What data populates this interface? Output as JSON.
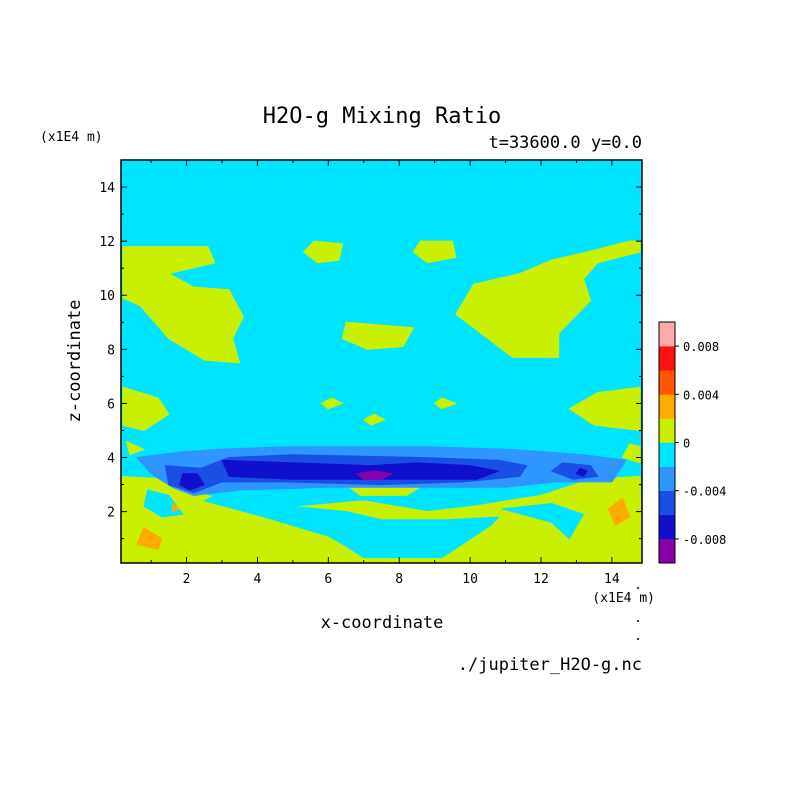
{
  "chart_data": {
    "type": "heatmap",
    "title": "H2O-g Mixing Ratio",
    "subtitle": "t=33600.0 y=0.0",
    "xlabel": "x-coordinate",
    "ylabel": "z-coordinate",
    "x_units": "(x1E4 m)",
    "y_units": "(x1E4 m)",
    "xlim": [
      0.15,
      14.85
    ],
    "ylim": [
      0.1,
      15.0
    ],
    "x_ticks": [
      2,
      4,
      6,
      8,
      10,
      12,
      14
    ],
    "y_ticks": [
      2,
      4,
      6,
      8,
      10,
      12,
      14
    ],
    "x_tick_labels": [
      "2",
      "4",
      "6",
      "8",
      "10",
      "12",
      "14"
    ],
    "y_tick_labels": [
      "2",
      "4",
      "6",
      "8",
      "10",
      "12",
      "14"
    ],
    "source": "./jupiter_H2O-g.nc",
    "legend": {
      "placement": "right",
      "levels": [
        -0.01,
        -0.008,
        -0.006,
        -0.004,
        -0.002,
        0.0,
        0.002,
        0.004,
        0.006,
        0.008,
        0.01
      ],
      "colors": [
        "#8800aa",
        "#1010cc",
        "#1a4fe6",
        "#2f96ff",
        "#00e5ff",
        "#c8f000",
        "#ffaa00",
        "#ff5500",
        "#ff1111",
        "#ffaaaa"
      ],
      "tick_values": [
        -0.008,
        -0.004,
        0,
        0.004,
        0.008
      ],
      "tick_labels": [
        "-0.008",
        "-0.004",
        "0",
        "0.004",
        "0.008"
      ]
    },
    "background_level": "-0.002 to 0",
    "regions": [
      {
        "name": "upper-band",
        "level": "0 to 0.002",
        "points": [
          [
            0.2,
            11.8
          ],
          [
            2.6,
            11.8
          ],
          [
            2.8,
            11.2
          ],
          [
            1.5,
            10.8
          ],
          [
            2.2,
            10.3
          ],
          [
            3.2,
            10.2
          ],
          [
            3.6,
            9.2
          ],
          [
            3.3,
            8.4
          ],
          [
            3.5,
            7.5
          ],
          [
            2.5,
            7.6
          ],
          [
            1.5,
            8.4
          ],
          [
            0.7,
            9.6
          ],
          [
            0.2,
            9.9
          ]
        ]
      },
      {
        "name": "upper-band",
        "level": "0 to 0.002",
        "points": [
          [
            14.8,
            11.6
          ],
          [
            13.6,
            11.2
          ],
          [
            13.2,
            10.6
          ],
          [
            13.4,
            9.8
          ],
          [
            12.5,
            8.6
          ],
          [
            12.5,
            7.7
          ],
          [
            11.2,
            7.7
          ],
          [
            10.4,
            8.5
          ],
          [
            9.6,
            9.3
          ],
          [
            10.1,
            10.4
          ],
          [
            11.4,
            10.8
          ],
          [
            12.3,
            11.3
          ],
          [
            13.3,
            11.6
          ],
          [
            14.5,
            12.0
          ],
          [
            14.8,
            12.0
          ]
        ]
      },
      {
        "name": "upper-band",
        "level": "0 to 0.002",
        "points": [
          [
            5.6,
            12.0
          ],
          [
            6.4,
            11.9
          ],
          [
            6.3,
            11.3
          ],
          [
            5.7,
            11.2
          ],
          [
            5.3,
            11.6
          ]
        ]
      },
      {
        "name": "upper-band",
        "level": "0 to 0.002",
        "points": [
          [
            8.6,
            12.0
          ],
          [
            9.5,
            12.0
          ],
          [
            9.6,
            11.4
          ],
          [
            8.8,
            11.2
          ],
          [
            8.4,
            11.6
          ]
        ]
      },
      {
        "name": "upper-band",
        "level": "0 to 0.002",
        "points": [
          [
            6.5,
            9.0
          ],
          [
            8.4,
            8.8
          ],
          [
            8.1,
            8.1
          ],
          [
            7.1,
            8.0
          ],
          [
            6.4,
            8.4
          ]
        ]
      },
      {
        "name": "upper-band",
        "level": "0 to 0.002",
        "points": [
          [
            0.2,
            6.6
          ],
          [
            1.2,
            6.2
          ],
          [
            1.5,
            5.6
          ],
          [
            0.8,
            5.0
          ],
          [
            0.2,
            5.2
          ]
        ]
      },
      {
        "name": "upper-band",
        "level": "0 to 0.002",
        "points": [
          [
            14.8,
            6.6
          ],
          [
            13.6,
            6.4
          ],
          [
            12.8,
            5.8
          ],
          [
            13.5,
            5.2
          ],
          [
            14.8,
            5.0
          ]
        ]
      },
      {
        "name": "upper-band",
        "level": "0 to 0.002",
        "points": [
          [
            7.3,
            5.6
          ],
          [
            7.6,
            5.4
          ],
          [
            7.2,
            5.2
          ],
          [
            7.0,
            5.4
          ]
        ]
      },
      {
        "name": "upper-band",
        "level": "0 to 0.002",
        "points": [
          [
            6.1,
            6.2
          ],
          [
            6.4,
            6.0
          ],
          [
            6.0,
            5.8
          ],
          [
            5.8,
            6.0
          ]
        ]
      },
      {
        "name": "upper-band",
        "level": "0 to 0.002",
        "points": [
          [
            9.2,
            6.2
          ],
          [
            9.6,
            6.0
          ],
          [
            9.2,
            5.8
          ],
          [
            9.0,
            6.0
          ]
        ]
      },
      {
        "name": "lower-band",
        "level": "0 to 0.002",
        "points": [
          [
            0.15,
            3.3
          ],
          [
            1.6,
            3.2
          ],
          [
            2.2,
            2.7
          ],
          [
            3.0,
            2.5
          ],
          [
            4.5,
            2.1
          ],
          [
            7.0,
            2.4
          ],
          [
            8.8,
            2.0
          ],
          [
            10.1,
            2.2
          ],
          [
            12.0,
            2.6
          ],
          [
            13.4,
            3.2
          ],
          [
            14.8,
            3.3
          ],
          [
            14.85,
            0.1
          ],
          [
            0.15,
            0.1
          ]
        ]
      },
      {
        "name": "lower-band",
        "level": "0 to 0.002",
        "points": [
          [
            6.5,
            3.0
          ],
          [
            8.7,
            3.0
          ],
          [
            8.2,
            2.6
          ],
          [
            6.9,
            2.6
          ]
        ]
      },
      {
        "name": "lower-band",
        "level": "0 to 0.002",
        "points": [
          [
            0.3,
            4.6
          ],
          [
            0.8,
            4.3
          ],
          [
            0.4,
            4.1
          ]
        ]
      },
      {
        "name": "lower-band",
        "level": "0 to 0.002",
        "points": [
          [
            14.5,
            4.5
          ],
          [
            14.8,
            4.4
          ],
          [
            14.8,
            3.8
          ],
          [
            14.3,
            4.0
          ]
        ]
      },
      {
        "name": "lower-hole",
        "level": "-0.002 to 0",
        "points": [
          [
            2.5,
            2.4
          ],
          [
            4.2,
            1.8
          ],
          [
            5.2,
            1.4
          ],
          [
            6.0,
            1.1
          ],
          [
            6.4,
            0.8
          ],
          [
            7.0,
            0.3
          ],
          [
            9.2,
            0.3
          ],
          [
            10.6,
            1.5
          ],
          [
            10.8,
            1.8
          ],
          [
            9.4,
            1.7
          ],
          [
            7.5,
            1.7
          ],
          [
            6.5,
            2.0
          ],
          [
            4.2,
            2.3
          ],
          [
            2.8,
            2.6
          ]
        ]
      },
      {
        "name": "lower-hole",
        "level": "-0.002 to 0",
        "points": [
          [
            10.9,
            2.1
          ],
          [
            12.3,
            1.6
          ],
          [
            12.8,
            1.0
          ],
          [
            13.2,
            1.9
          ],
          [
            12.3,
            2.3
          ]
        ]
      },
      {
        "name": "lower-hole",
        "level": "-0.002 to 0",
        "points": [
          [
            0.9,
            2.8
          ],
          [
            1.5,
            2.6
          ],
          [
            1.9,
            1.9
          ],
          [
            1.3,
            1.8
          ],
          [
            0.8,
            2.2
          ]
        ]
      },
      {
        "name": "warm-patch",
        "level": "0.002 to 0.004",
        "points": [
          [
            0.8,
            1.4
          ],
          [
            1.3,
            1.0
          ],
          [
            1.2,
            0.6
          ],
          [
            0.6,
            0.8
          ]
        ]
      },
      {
        "name": "warm-patch",
        "level": "0.002 to 0.004",
        "points": [
          [
            14.3,
            2.5
          ],
          [
            14.5,
            1.8
          ],
          [
            14.1,
            1.5
          ],
          [
            13.9,
            2.1
          ]
        ]
      },
      {
        "name": "warm-patch",
        "level": "0.002 to 0.004",
        "points": [
          [
            1.6,
            2.3
          ],
          [
            1.8,
            2.1
          ],
          [
            1.6,
            2.0
          ]
        ]
      },
      {
        "name": "neg-band",
        "level": "-0.004 to -0.002",
        "points": [
          [
            0.6,
            4.0
          ],
          [
            1.8,
            4.2
          ],
          [
            2.8,
            4.3
          ],
          [
            4.8,
            4.4
          ],
          [
            8.8,
            4.4
          ],
          [
            11.2,
            4.3
          ],
          [
            13.2,
            4.1
          ],
          [
            14.4,
            3.9
          ],
          [
            14.0,
            3.1
          ],
          [
            12.4,
            3.1
          ],
          [
            11.0,
            2.9
          ],
          [
            9.0,
            2.9
          ],
          [
            6.0,
            2.9
          ],
          [
            3.5,
            2.8
          ],
          [
            2.2,
            2.6
          ],
          [
            1.6,
            2.9
          ],
          [
            1.0,
            3.4
          ]
        ]
      },
      {
        "name": "neg-band",
        "level": "-0.006 to -0.004",
        "points": [
          [
            1.4,
            3.7
          ],
          [
            2.4,
            3.6
          ],
          [
            3.2,
            4.0
          ],
          [
            5.0,
            4.1
          ],
          [
            8.6,
            4.0
          ],
          [
            10.8,
            3.9
          ],
          [
            11.6,
            3.7
          ],
          [
            11.4,
            3.3
          ],
          [
            9.8,
            3.1
          ],
          [
            7.5,
            3.0
          ],
          [
            4.8,
            3.1
          ],
          [
            3.0,
            3.1
          ],
          [
            2.2,
            2.7
          ],
          [
            1.5,
            3.0
          ]
        ]
      },
      {
        "name": "neg-band",
        "level": "-0.006 to -0.004",
        "points": [
          [
            12.6,
            3.8
          ],
          [
            13.4,
            3.7
          ],
          [
            13.6,
            3.3
          ],
          [
            12.9,
            3.2
          ],
          [
            12.3,
            3.5
          ]
        ]
      },
      {
        "name": "neg-band",
        "level": "-0.008 to -0.006",
        "points": [
          [
            3.0,
            3.9
          ],
          [
            5.0,
            3.8
          ],
          [
            7.2,
            3.7
          ],
          [
            8.5,
            3.8
          ],
          [
            10.0,
            3.7
          ],
          [
            10.8,
            3.5
          ],
          [
            10.2,
            3.2
          ],
          [
            8.2,
            3.2
          ],
          [
            7.0,
            3.2
          ],
          [
            5.0,
            3.2
          ],
          [
            3.2,
            3.3
          ]
        ]
      },
      {
        "name": "neg-band",
        "level": "-0.008 to -0.006",
        "points": [
          [
            1.9,
            3.4
          ],
          [
            2.3,
            3.4
          ],
          [
            2.5,
            3.0
          ],
          [
            2.1,
            2.8
          ],
          [
            1.8,
            3.0
          ]
        ]
      },
      {
        "name": "neg-band",
        "level": "-0.008 to -0.006",
        "points": [
          [
            13.1,
            3.6
          ],
          [
            13.3,
            3.5
          ],
          [
            13.2,
            3.3
          ],
          [
            13.0,
            3.4
          ]
        ]
      },
      {
        "name": "neg-core",
        "level": "-0.010 to -0.008",
        "points": [
          [
            6.8,
            3.4
          ],
          [
            7.3,
            3.5
          ],
          [
            7.8,
            3.4
          ],
          [
            7.5,
            3.2
          ],
          [
            7.0,
            3.2
          ]
        ]
      }
    ]
  }
}
